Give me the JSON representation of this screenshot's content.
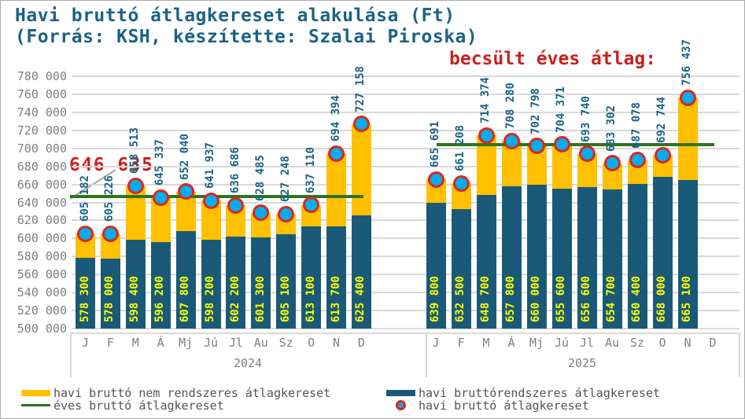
{
  "title": {
    "line1": "Havi bruttó átlagkereset alakulása (Ft)",
    "line2": "(Forrás: KSH, készítette: Szalai Piroska)"
  },
  "annotations": {
    "avg_2024_value": "646 635",
    "estimated_avg_label": "becsült éves átlag:"
  },
  "legend": {
    "nonregular": "havi bruttó nem rendszeres átlagkereset",
    "regular": "havi bruttórendszeres átlagkereset",
    "annual": "éves bruttó átlagkereset",
    "monthly": "havi bruttó átlagkereset"
  },
  "colors": {
    "nonregular_bar": "#FFC000",
    "regular_bar": "#1A5A78",
    "dot_fill": "#00AEEF",
    "dot_ring": "#E0251C",
    "annual_line": "#2E741C",
    "annotation_red": "#C9201D",
    "label_teal": "#1B6284",
    "inner_label_yellow": "#FFFF00",
    "axis_text": "#7F7F7F",
    "gridline": "#D9D9D9"
  },
  "chart_data": {
    "type": "bar",
    "stacked": true,
    "unit": "Ft",
    "legend_position": "bottom",
    "grid": "horizontal",
    "y_axis": {
      "min": 500000,
      "max": 780000,
      "step": 20000,
      "tick_values": [
        500000,
        520000,
        540000,
        560000,
        580000,
        600000,
        620000,
        640000,
        660000,
        680000,
        700000,
        720000,
        740000,
        760000,
        780000
      ]
    },
    "series_names": [
      "havi bruttórendszeres átlagkereset",
      "havi bruttó nem rendszeres átlagkereset"
    ],
    "groups": [
      {
        "year": "2024",
        "annual_average": 646635,
        "annual_average_label": "646 635",
        "months": [
          {
            "label": "J",
            "regular": 578300,
            "total": 605182
          },
          {
            "label": "F",
            "regular": 578000,
            "total": 605226
          },
          {
            "label": "M",
            "regular": 598400,
            "total": 658513
          },
          {
            "label": "Á",
            "regular": 596200,
            "total": 645337
          },
          {
            "label": "Mj",
            "regular": 607800,
            "total": 652040
          },
          {
            "label": "Jú",
            "regular": 598200,
            "total": 641937
          },
          {
            "label": "Jl",
            "regular": 602200,
            "total": 636686
          },
          {
            "label": "Au",
            "regular": 601300,
            "total": 628485
          },
          {
            "label": "Sz",
            "regular": 605100,
            "total": 627248
          },
          {
            "label": "O",
            "regular": 613100,
            "total": 637110
          },
          {
            "label": "N",
            "regular": 613700,
            "total": 694394
          },
          {
            "label": "D",
            "regular": 625400,
            "total": 727158
          }
        ]
      },
      {
        "year": "2025",
        "annual_average_estimate": 704000,
        "months": [
          {
            "label": "J",
            "regular": 639800,
            "total": 665691
          },
          {
            "label": "F",
            "regular": 632500,
            "total": 661208
          },
          {
            "label": "M",
            "regular": 648700,
            "total": 714374
          },
          {
            "label": "Á",
            "regular": 657800,
            "total": 708280
          },
          {
            "label": "Mj",
            "regular": 660000,
            "total": 702798
          },
          {
            "label": "Jú",
            "regular": 655600,
            "total": 704371
          },
          {
            "label": "Jl",
            "regular": 656600,
            "total": 693740
          },
          {
            "label": "Au",
            "regular": 654700,
            "total": 683302
          },
          {
            "label": "Sz",
            "regular": 660400,
            "total": 687078
          },
          {
            "label": "O",
            "regular": 668000,
            "total": 692744
          },
          {
            "label": "N",
            "regular": 665100,
            "total": 756437
          },
          {
            "label": "D",
            "regular": null,
            "total": null
          }
        ]
      }
    ]
  }
}
